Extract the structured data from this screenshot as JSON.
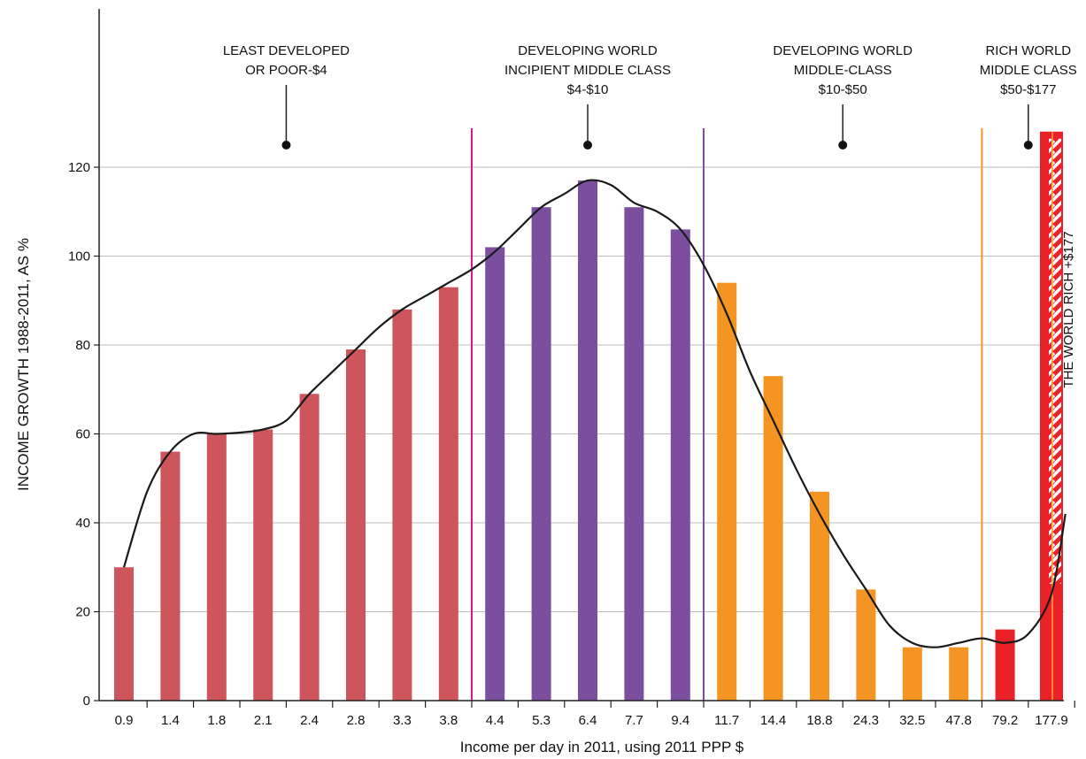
{
  "chart_data": {
    "type": "bar",
    "title": "",
    "xlabel": "Income per day in 2011, using 2011 PPP $",
    "ylabel": "INCOME GROWTH 1988-2011, AS %",
    "ylim": [
      0,
      128
    ],
    "yticks": [
      "0",
      "20",
      "40",
      "60",
      "80",
      "100",
      "120"
    ],
    "grid": "horizontal",
    "categories": [
      "0.9",
      "1.4",
      "1.8",
      "2.1",
      "2.4",
      "2.8",
      "3.3",
      "3.8",
      "4.4",
      "5.3",
      "6.4",
      "7.7",
      "9.4",
      "11.7",
      "14.4",
      "18.8",
      "24.3",
      "32.5",
      "47.8",
      "79.2",
      "177.9"
    ],
    "values": [
      30,
      56,
      60,
      61,
      69,
      79,
      88,
      93,
      102,
      111,
      117,
      111,
      106,
      94,
      73,
      47,
      25,
      12,
      12,
      16,
      128
    ],
    "bar_groups": [
      0,
      0,
      0,
      0,
      0,
      0,
      0,
      0,
      1,
      1,
      1,
      1,
      1,
      2,
      2,
      2,
      2,
      2,
      2,
      3,
      4
    ],
    "group_colors": [
      "#cd555b",
      "#7b4f9e",
      "#f39423",
      "#ea2227",
      "#ea2227"
    ],
    "trend_line": {
      "x": [
        0.0,
        0.5,
        1.0,
        1.5,
        2.0,
        2.5,
        3.0,
        3.5,
        4.0,
        4.5,
        5.0,
        5.5,
        6.0,
        6.5,
        7.0,
        7.5,
        8.0,
        8.5,
        9.0,
        9.5,
        10.0,
        10.5,
        11.0,
        11.5,
        12.0,
        12.5,
        13.0,
        13.5,
        14.0,
        14.5,
        15.0,
        15.5,
        16.0,
        16.5,
        17.0,
        17.5,
        18.0,
        18.5,
        19.0,
        19.5,
        20.0,
        20.3
      ],
      "y": [
        30,
        47,
        56,
        60,
        60,
        60.3,
        61,
        63,
        69,
        74,
        79,
        84,
        88,
        91,
        94,
        97,
        101,
        106,
        111,
        114,
        117,
        116,
        112,
        110,
        106,
        98,
        87,
        74,
        63,
        52,
        42,
        33,
        25,
        17,
        13,
        12,
        13,
        14,
        13,
        15,
        24,
        42
      ]
    },
    "divider_lines": [
      {
        "after_index": 7.5,
        "color": "#e0178c"
      },
      {
        "after_index": 12.5,
        "color": "#7b4f9e"
      },
      {
        "after_index": 18.5,
        "color": "#f39423"
      }
    ],
    "group_labels": [
      {
        "lines": [
          "LEAST DEVELOPED",
          "OR POOR-$4"
        ],
        "center_index": 3.5
      },
      {
        "lines": [
          "DEVELOPING WORLD",
          "INCIPIENT MIDDLE CLASS",
          "$4-$10"
        ],
        "center_index": 10
      },
      {
        "lines": [
          "DEVELOPING WORLD",
          "MIDDLE-CLASS",
          "$10-$50"
        ],
        "center_index": 15.5
      },
      {
        "lines": [
          "RICH WORLD",
          "MIDDLE CLASS",
          "$50-$177"
        ],
        "center_index": 19.5
      }
    ],
    "rich_label": "THE WORLD RICH +$177",
    "rich_bar_pattern": "white-stripes"
  }
}
